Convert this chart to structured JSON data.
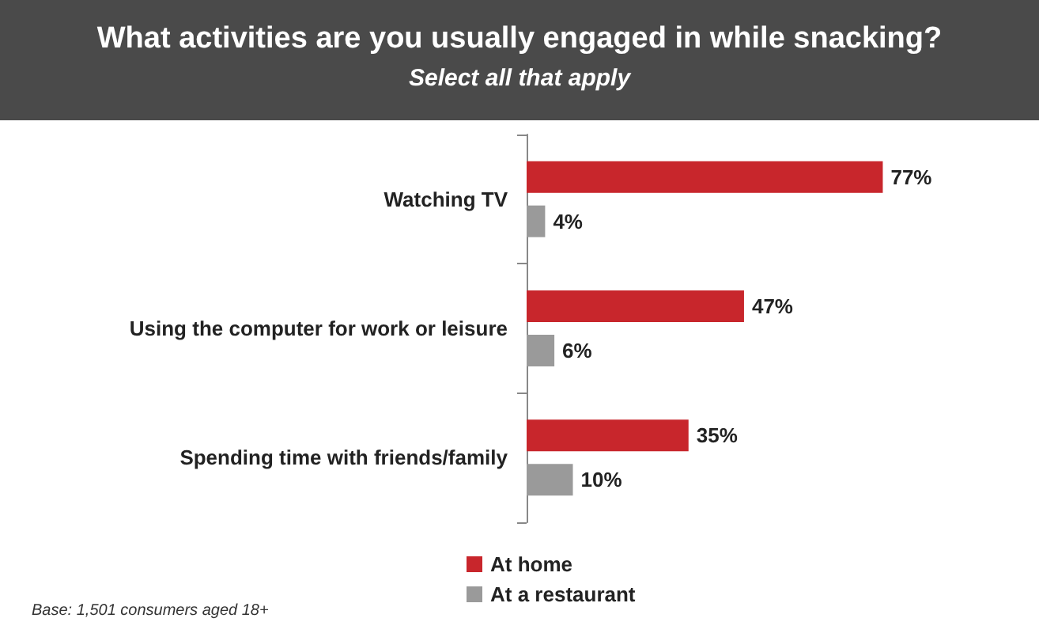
{
  "chart_data": {
    "type": "bar",
    "orientation": "horizontal",
    "title": "What activities are you usually engaged in while snacking?",
    "subtitle": "Select all that apply",
    "categories": [
      "Watching TV",
      "Using the computer for work or leisure",
      "Spending time with friends/family"
    ],
    "series": [
      {
        "name": "At home",
        "color": "#c8262c",
        "values": [
          77,
          47,
          35
        ],
        "value_labels": [
          "77%",
          "47%",
          "35%"
        ]
      },
      {
        "name": "At a restaurant",
        "color": "#9a9a9a",
        "values": [
          4,
          6,
          10
        ],
        "value_labels": [
          "4%",
          "6%",
          "10%"
        ]
      }
    ],
    "legend": "bottom",
    "grid": false,
    "tick_labels": "y",
    "annotations": [
      "Base: 1,501 consumers aged 18+"
    ]
  }
}
